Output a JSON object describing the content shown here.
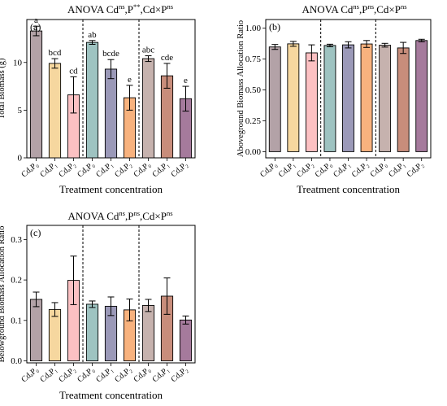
{
  "group_labels_sub": [
    "0",
    "1",
    "2",
    "0",
    "1",
    "2",
    "0",
    "1",
    "2"
  ],
  "colors": [
    "#b3a2a7",
    "#f6d79f",
    "#fcc1c3",
    "#9ec3c1",
    "#9b99b8",
    "#f8b27e",
    "#c6b2ae",
    "#c88d7b",
    "#a57a9c"
  ],
  "xlabel": "Treatment concentration",
  "chart_data": [
    {
      "type": "bar",
      "panel": "(a)",
      "title": {
        "lead": "ANOVA  Cd",
        "s1": "ns",
        "mid1": ",P",
        "s2": "**",
        "mid2": ",Cd×P",
        "s3": "ns"
      },
      "ylabel": "Total Biomass (g)",
      "ylim": [
        0,
        14.5
      ],
      "yticks": [
        0,
        5,
        10
      ],
      "ytick_labels": [
        "0",
        "5",
        "10"
      ],
      "categories": [
        "CdₐP₀",
        "CdₐP₁",
        "CdₐP₂",
        "CdₓP₀",
        "CdₓP₁",
        "CdₓP₂",
        "CdₔP₀",
        "CdₔP₁",
        "CdₔP₂"
      ],
      "values": [
        13.3,
        9.9,
        6.6,
        12.1,
        9.3,
        6.3,
        10.4,
        8.6,
        6.2
      ],
      "errors": [
        0.5,
        0.5,
        1.9,
        0.2,
        1.0,
        1.3,
        0.3,
        1.3,
        1.3
      ],
      "letters": [
        "a",
        "bcd",
        "cd",
        "ab",
        "bcde",
        "e",
        "abc",
        "cde",
        "e"
      ]
    },
    {
      "type": "bar",
      "panel": "(b)",
      "title": {
        "lead": "ANOVA  Cd",
        "s1": "ns",
        "mid1": ",P",
        "s2": "ns",
        "mid2": ",Cd×P",
        "s3": "ns"
      },
      "ylabel": "Aboveground Biomass Allocation Ratio",
      "ylim": [
        -0.05,
        1.07
      ],
      "yticks": [
        0,
        0.25,
        0.5,
        0.75,
        1.0
      ],
      "ytick_labels": [
        "0.00",
        "0.25",
        "0.50",
        "0.75",
        "1.00"
      ],
      "categories": [
        "CdₐP₀",
        "CdₐP₁",
        "CdₐP₂",
        "CdₓP₀",
        "CdₓP₁",
        "CdₓP₂",
        "CdₔP₀",
        "CdₔP₁",
        "CdₔP₂"
      ],
      "values": [
        0.848,
        0.873,
        0.8,
        0.86,
        0.865,
        0.872,
        0.862,
        0.84,
        0.9
      ],
      "errors": [
        0.02,
        0.02,
        0.065,
        0.01,
        0.025,
        0.028,
        0.015,
        0.045,
        0.01
      ],
      "letters": []
    },
    {
      "type": "bar",
      "panel": "(c)",
      "title": {
        "lead": "ANOVA  Cd",
        "s1": "ns",
        "mid1": ",P",
        "s2": "ns",
        "mid2": ",Cd×P",
        "s3": "ns"
      },
      "ylabel": "Belowground Biomass Allocation Ratio",
      "ylim": [
        -0.005,
        0.335
      ],
      "yticks": [
        0,
        0.1,
        0.2,
        0.3
      ],
      "ytick_labels": [
        "0.0",
        "0.1",
        "0.2",
        "0.3"
      ],
      "categories": [
        "CdₐP₀",
        "CdₐP₁",
        "CdₐP₂",
        "CdₓP₀",
        "CdₓP₁",
        "CdₓP₂",
        "CdₔP₀",
        "CdₔP₁",
        "CdₔP₂"
      ],
      "values": [
        0.152,
        0.127,
        0.199,
        0.14,
        0.135,
        0.126,
        0.137,
        0.16,
        0.101
      ],
      "errors": [
        0.018,
        0.017,
        0.06,
        0.008,
        0.023,
        0.027,
        0.015,
        0.045,
        0.01
      ],
      "letters": []
    }
  ]
}
